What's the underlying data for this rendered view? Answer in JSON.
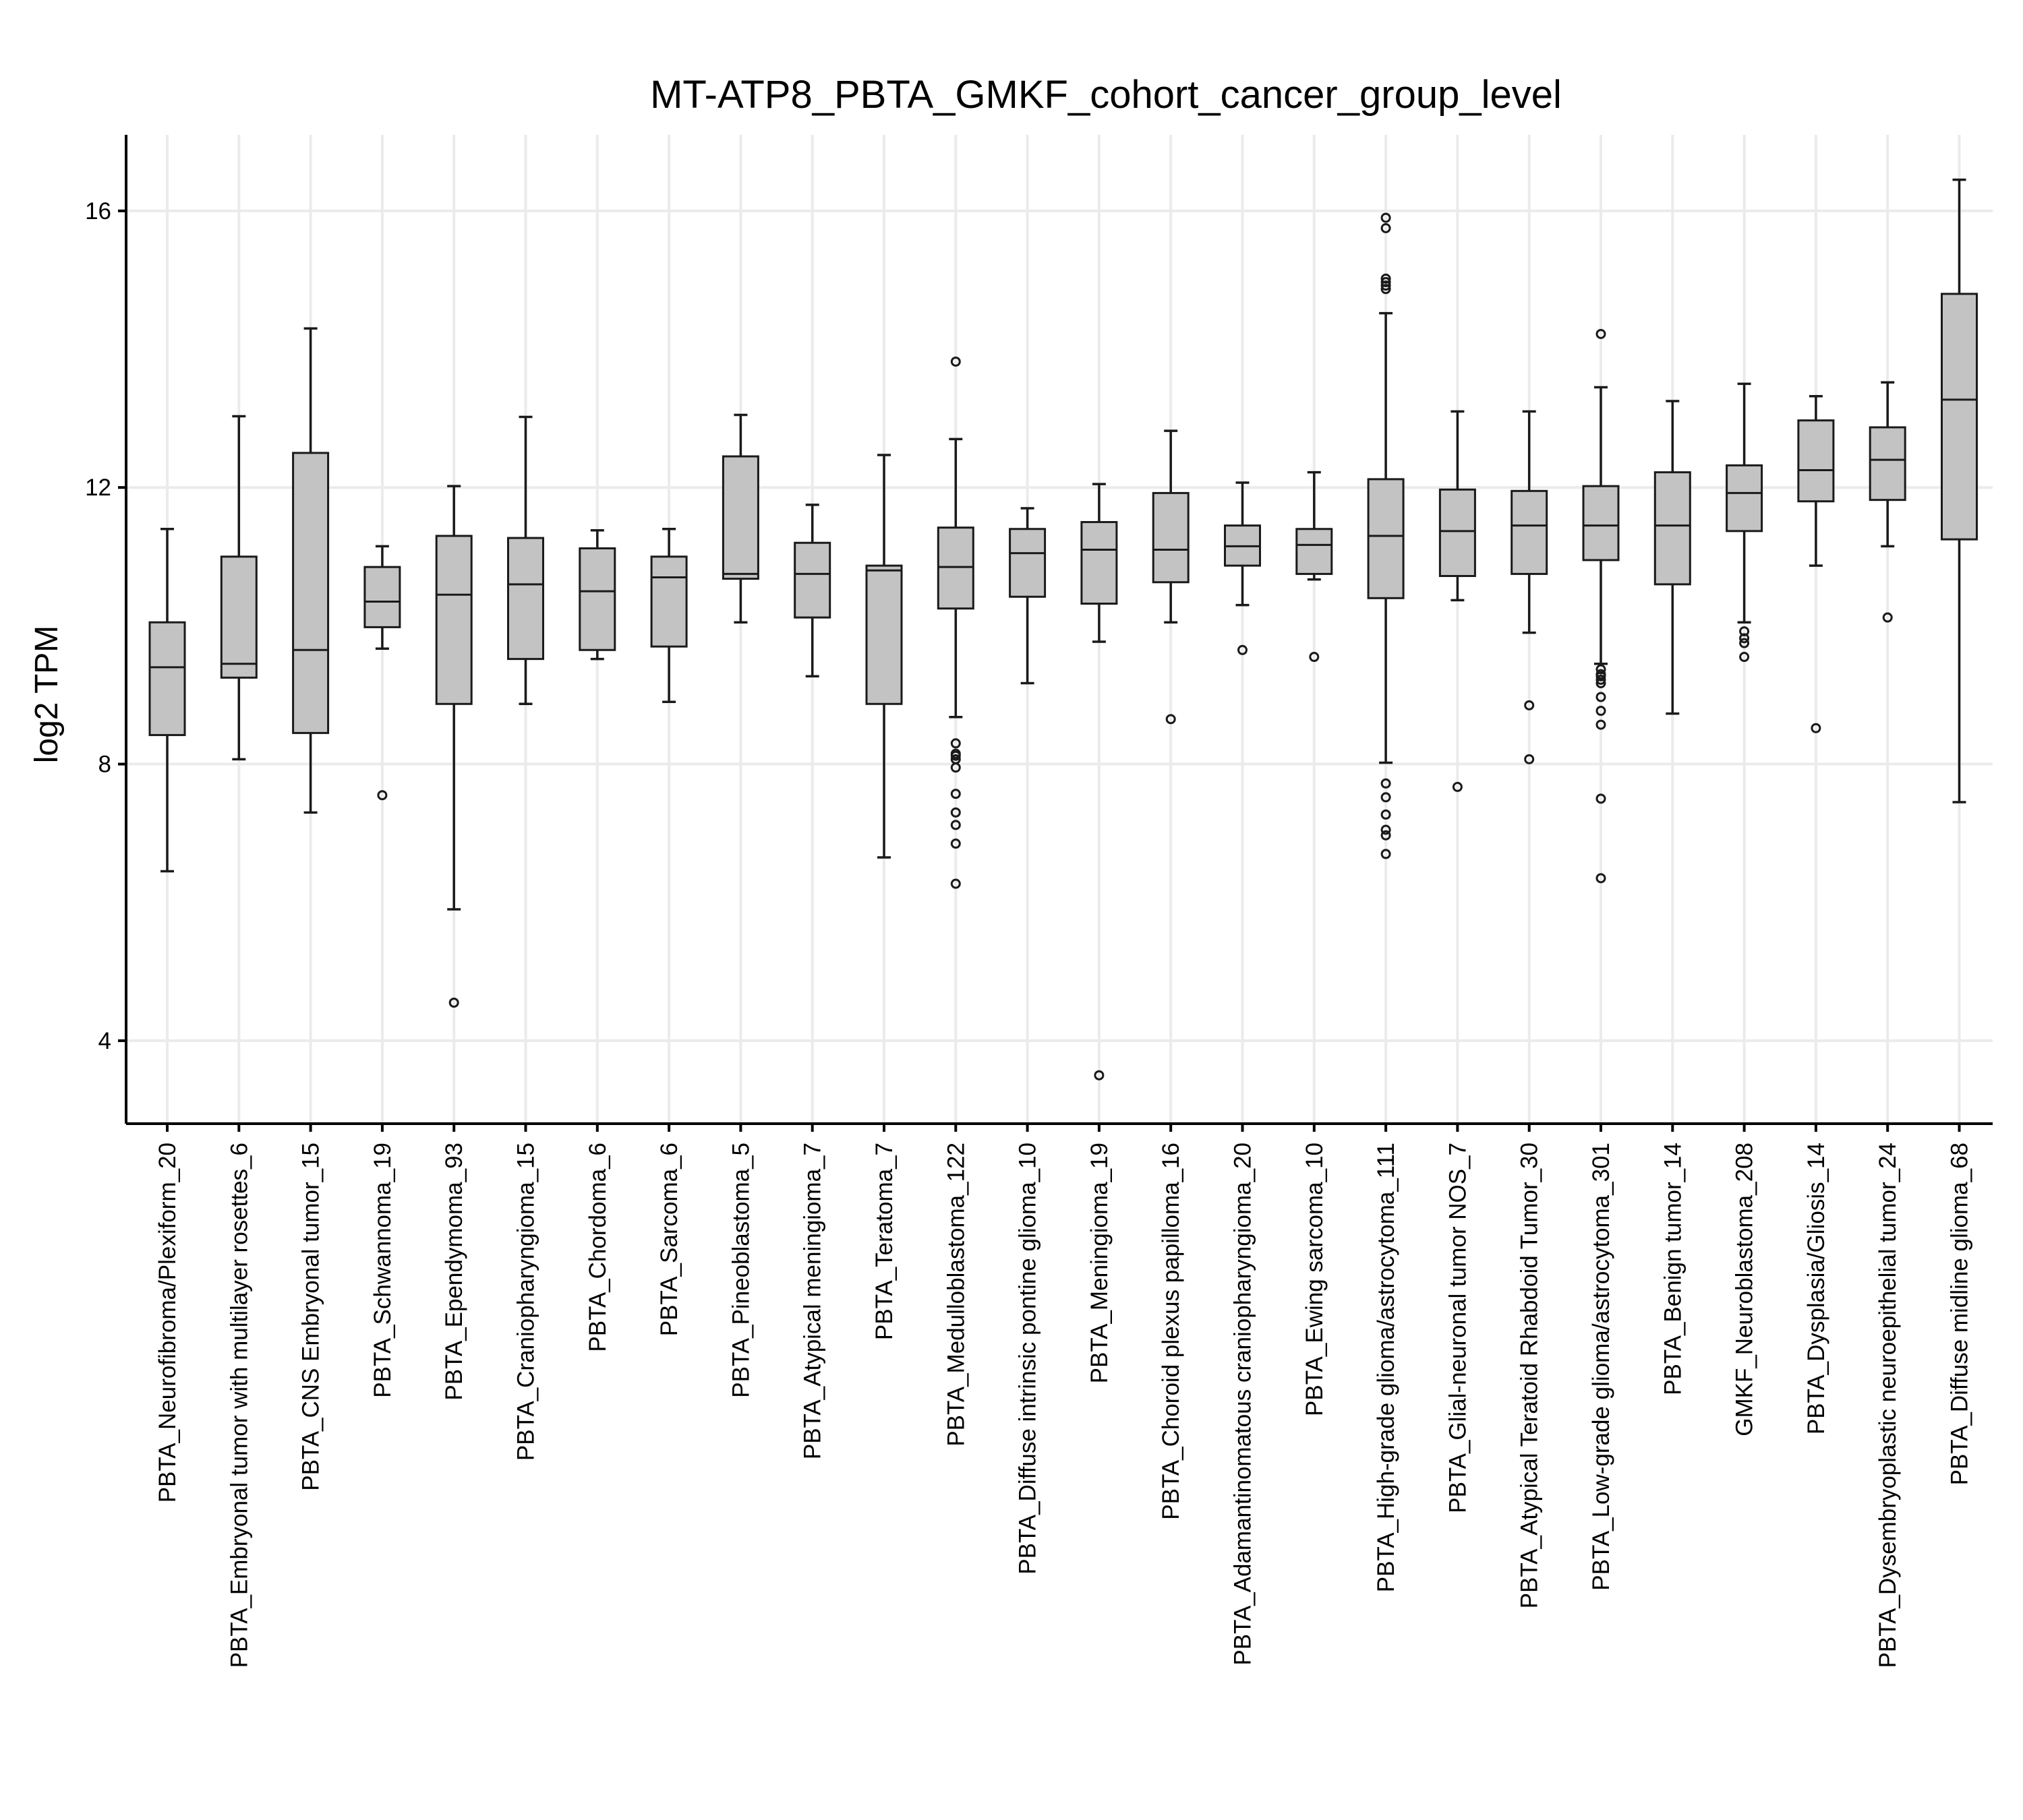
{
  "chart_data": {
    "type": "box",
    "title": "MT-ATP8_PBTA_GMKF_cohort_cancer_group_level",
    "xlabel": "",
    "ylabel": "log2 TPM",
    "ylim": [
      2.8,
      17.1
    ],
    "yticks": [
      4,
      8,
      12,
      16
    ],
    "grid": true,
    "box_color": "#c3c3c3",
    "groups": [
      {
        "label": "PBTA_Neurofibroma/Plexiform_20",
        "whislo": 6.45,
        "q1": 8.42,
        "median": 9.4,
        "q3": 10.05,
        "whishi": 11.4,
        "outliers": []
      },
      {
        "label": "PBTA_Embryonal tumor with multilayer rosettes_6",
        "whislo": 8.07,
        "q1": 9.25,
        "median": 9.45,
        "q3": 11.0,
        "whishi": 13.03,
        "outliers": []
      },
      {
        "label": "PBTA_CNS Embryonal tumor_15",
        "whislo": 7.3,
        "q1": 8.45,
        "median": 9.65,
        "q3": 12.5,
        "whishi": 14.3,
        "outliers": []
      },
      {
        "label": "PBTA_Schwannoma_19",
        "whislo": 9.67,
        "q1": 9.98,
        "median": 10.35,
        "q3": 10.85,
        "whishi": 11.15,
        "outliers": [
          7.55
        ]
      },
      {
        "label": "PBTA_Ependymoma_93",
        "whislo": 5.9,
        "q1": 8.87,
        "median": 10.45,
        "q3": 11.3,
        "whishi": 12.02,
        "outliers": [
          4.55
        ]
      },
      {
        "label": "PBTA_Craniopharyngioma_15",
        "whislo": 8.87,
        "q1": 9.52,
        "median": 10.6,
        "q3": 11.27,
        "whishi": 13.02,
        "outliers": []
      },
      {
        "label": "PBTA_Chordoma_6",
        "whislo": 9.52,
        "q1": 9.65,
        "median": 10.5,
        "q3": 11.12,
        "whishi": 11.38,
        "outliers": []
      },
      {
        "label": "PBTA_Sarcoma_6",
        "whislo": 8.9,
        "q1": 9.7,
        "median": 10.7,
        "q3": 11.0,
        "whishi": 11.4,
        "outliers": []
      },
      {
        "label": "PBTA_Pineoblastoma_5",
        "whislo": 10.05,
        "q1": 10.68,
        "median": 10.75,
        "q3": 12.45,
        "whishi": 13.05,
        "outliers": []
      },
      {
        "label": "PBTA_Atypical meningioma_7",
        "whislo": 9.27,
        "q1": 10.12,
        "median": 10.75,
        "q3": 11.2,
        "whishi": 11.75,
        "outliers": []
      },
      {
        "label": "PBTA_Teratoma_7",
        "whislo": 6.65,
        "q1": 8.87,
        "median": 10.8,
        "q3": 10.87,
        "whishi": 12.47,
        "outliers": []
      },
      {
        "label": "PBTA_Medulloblastoma_122",
        "whislo": 8.68,
        "q1": 10.25,
        "median": 10.85,
        "q3": 11.42,
        "whishi": 12.7,
        "outliers": [
          13.82,
          8.3,
          8.15,
          8.12,
          8.07,
          7.95,
          7.57,
          7.3,
          7.12,
          6.85,
          6.27
        ]
      },
      {
        "label": "PBTA_Diffuse intrinsic pontine glioma_10",
        "whislo": 9.17,
        "q1": 10.42,
        "median": 11.05,
        "q3": 11.4,
        "whishi": 11.7,
        "outliers": []
      },
      {
        "label": "PBTA_Meningioma_19",
        "whislo": 9.77,
        "q1": 10.32,
        "median": 11.1,
        "q3": 11.5,
        "whishi": 12.05,
        "outliers": [
          3.5
        ]
      },
      {
        "label": "PBTA_Choroid plexus papilloma_16",
        "whislo": 10.05,
        "q1": 10.63,
        "median": 11.1,
        "q3": 11.92,
        "whishi": 12.82,
        "outliers": [
          8.65
        ]
      },
      {
        "label": "PBTA_Adamantinomatous craniopharyngioma_20",
        "whislo": 10.3,
        "q1": 10.87,
        "median": 11.15,
        "q3": 11.45,
        "whishi": 12.07,
        "outliers": [
          9.65
        ]
      },
      {
        "label": "PBTA_Ewing sarcoma_10",
        "whislo": 10.67,
        "q1": 10.75,
        "median": 11.17,
        "q3": 11.4,
        "whishi": 12.22,
        "outliers": [
          9.55
        ]
      },
      {
        "label": "PBTA_High-grade glioma/astrocytoma_111",
        "whislo": 8.02,
        "q1": 10.4,
        "median": 11.3,
        "q3": 12.12,
        "whishi": 14.52,
        "outliers": [
          15.9,
          15.75,
          15.02,
          14.97,
          14.92,
          14.87,
          7.72,
          7.52,
          7.27,
          7.05,
          6.97,
          6.7
        ]
      },
      {
        "label": "PBTA_Glial-neuronal tumor NOS_7",
        "whislo": 10.37,
        "q1": 10.72,
        "median": 11.37,
        "q3": 11.97,
        "whishi": 13.1,
        "outliers": [
          7.67
        ]
      },
      {
        "label": "PBTA_Atypical Teratoid Rhabdoid Tumor_30",
        "whislo": 9.9,
        "q1": 10.75,
        "median": 11.45,
        "q3": 11.95,
        "whishi": 13.1,
        "outliers": [
          8.85,
          8.07
        ]
      },
      {
        "label": "PBTA_Low-grade glioma/astrocytoma_301",
        "whislo": 9.45,
        "q1": 10.95,
        "median": 11.45,
        "q3": 12.02,
        "whishi": 13.45,
        "outliers": [
          14.22,
          9.37,
          9.3,
          9.27,
          9.22,
          9.17,
          8.97,
          8.77,
          8.57,
          7.5,
          6.35
        ]
      },
      {
        "label": "PBTA_Benign tumor_14",
        "whislo": 8.73,
        "q1": 10.6,
        "median": 11.45,
        "q3": 12.22,
        "whishi": 13.25,
        "outliers": []
      },
      {
        "label": "GMKF_Neuroblastoma_208",
        "whislo": 10.05,
        "q1": 11.37,
        "median": 11.92,
        "q3": 12.32,
        "whishi": 13.5,
        "outliers": [
          9.92,
          9.82,
          9.75,
          9.55
        ]
      },
      {
        "label": "PBTA_Dysplasia/Gliosis_14",
        "whislo": 10.87,
        "q1": 11.8,
        "median": 12.25,
        "q3": 12.97,
        "whishi": 13.32,
        "outliers": [
          8.52
        ]
      },
      {
        "label": "PBTA_Dysembryoplastic neuroepithelial tumor_24",
        "whislo": 11.15,
        "q1": 11.82,
        "median": 12.4,
        "q3": 12.87,
        "whishi": 13.52,
        "outliers": [
          10.12
        ]
      },
      {
        "label": "PBTA_Diffuse midline glioma_68",
        "whislo": 7.45,
        "q1": 11.25,
        "median": 13.27,
        "q3": 14.8,
        "whishi": 16.45,
        "outliers": []
      }
    ]
  }
}
